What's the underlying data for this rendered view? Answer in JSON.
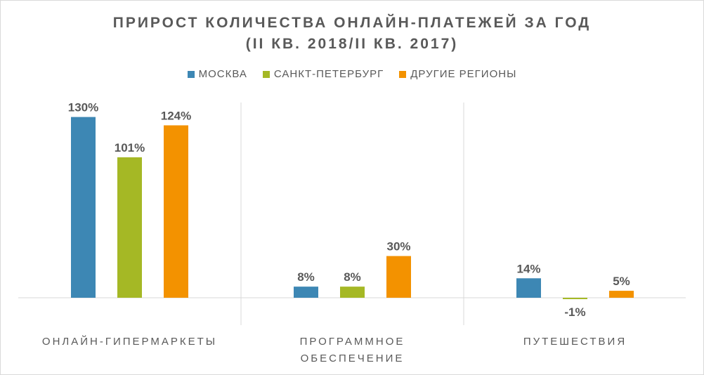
{
  "chart_data": {
    "type": "bar",
    "title": "ПРИРОСТ КОЛИЧЕСТВА ОНЛАЙН-ПЛАТЕЖЕЙ ЗА ГОД",
    "subtitle": "(II КВ. 2018/II КВ. 2017)",
    "categories": [
      "ОНЛАЙН-ГИПЕРМАРКЕТЫ",
      "ПРОГРАММНОЕ ОБЕСПЕЧЕНИЕ",
      "ПУТЕШЕСТВИЯ"
    ],
    "category_lines": [
      [
        "ОНЛАЙН-ГИПЕРМАРКЕТЫ"
      ],
      [
        "ПРОГРАММНОЕ",
        "ОБЕСПЕЧЕНИЕ"
      ],
      [
        "ПУТЕШЕСТВИЯ"
      ]
    ],
    "series": [
      {
        "name": "МОСКВА",
        "color": "#3d87b4",
        "values": [
          130,
          8,
          14
        ],
        "labels": [
          "130%",
          "8%",
          "14%"
        ]
      },
      {
        "name": "САНКТ-ПЕТЕРБУРГ",
        "color": "#a5b825",
        "values": [
          101,
          8,
          -1
        ],
        "labels": [
          "101%",
          "8%",
          "-1%"
        ]
      },
      {
        "name": "ДРУГИЕ РЕГИОНЫ",
        "color": "#f39200",
        "values": [
          124,
          30,
          5
        ],
        "labels": [
          "124%",
          "30%",
          "5%"
        ]
      }
    ],
    "unit": "%",
    "legend_position": "top",
    "grid": false,
    "category_dividers": true
  }
}
